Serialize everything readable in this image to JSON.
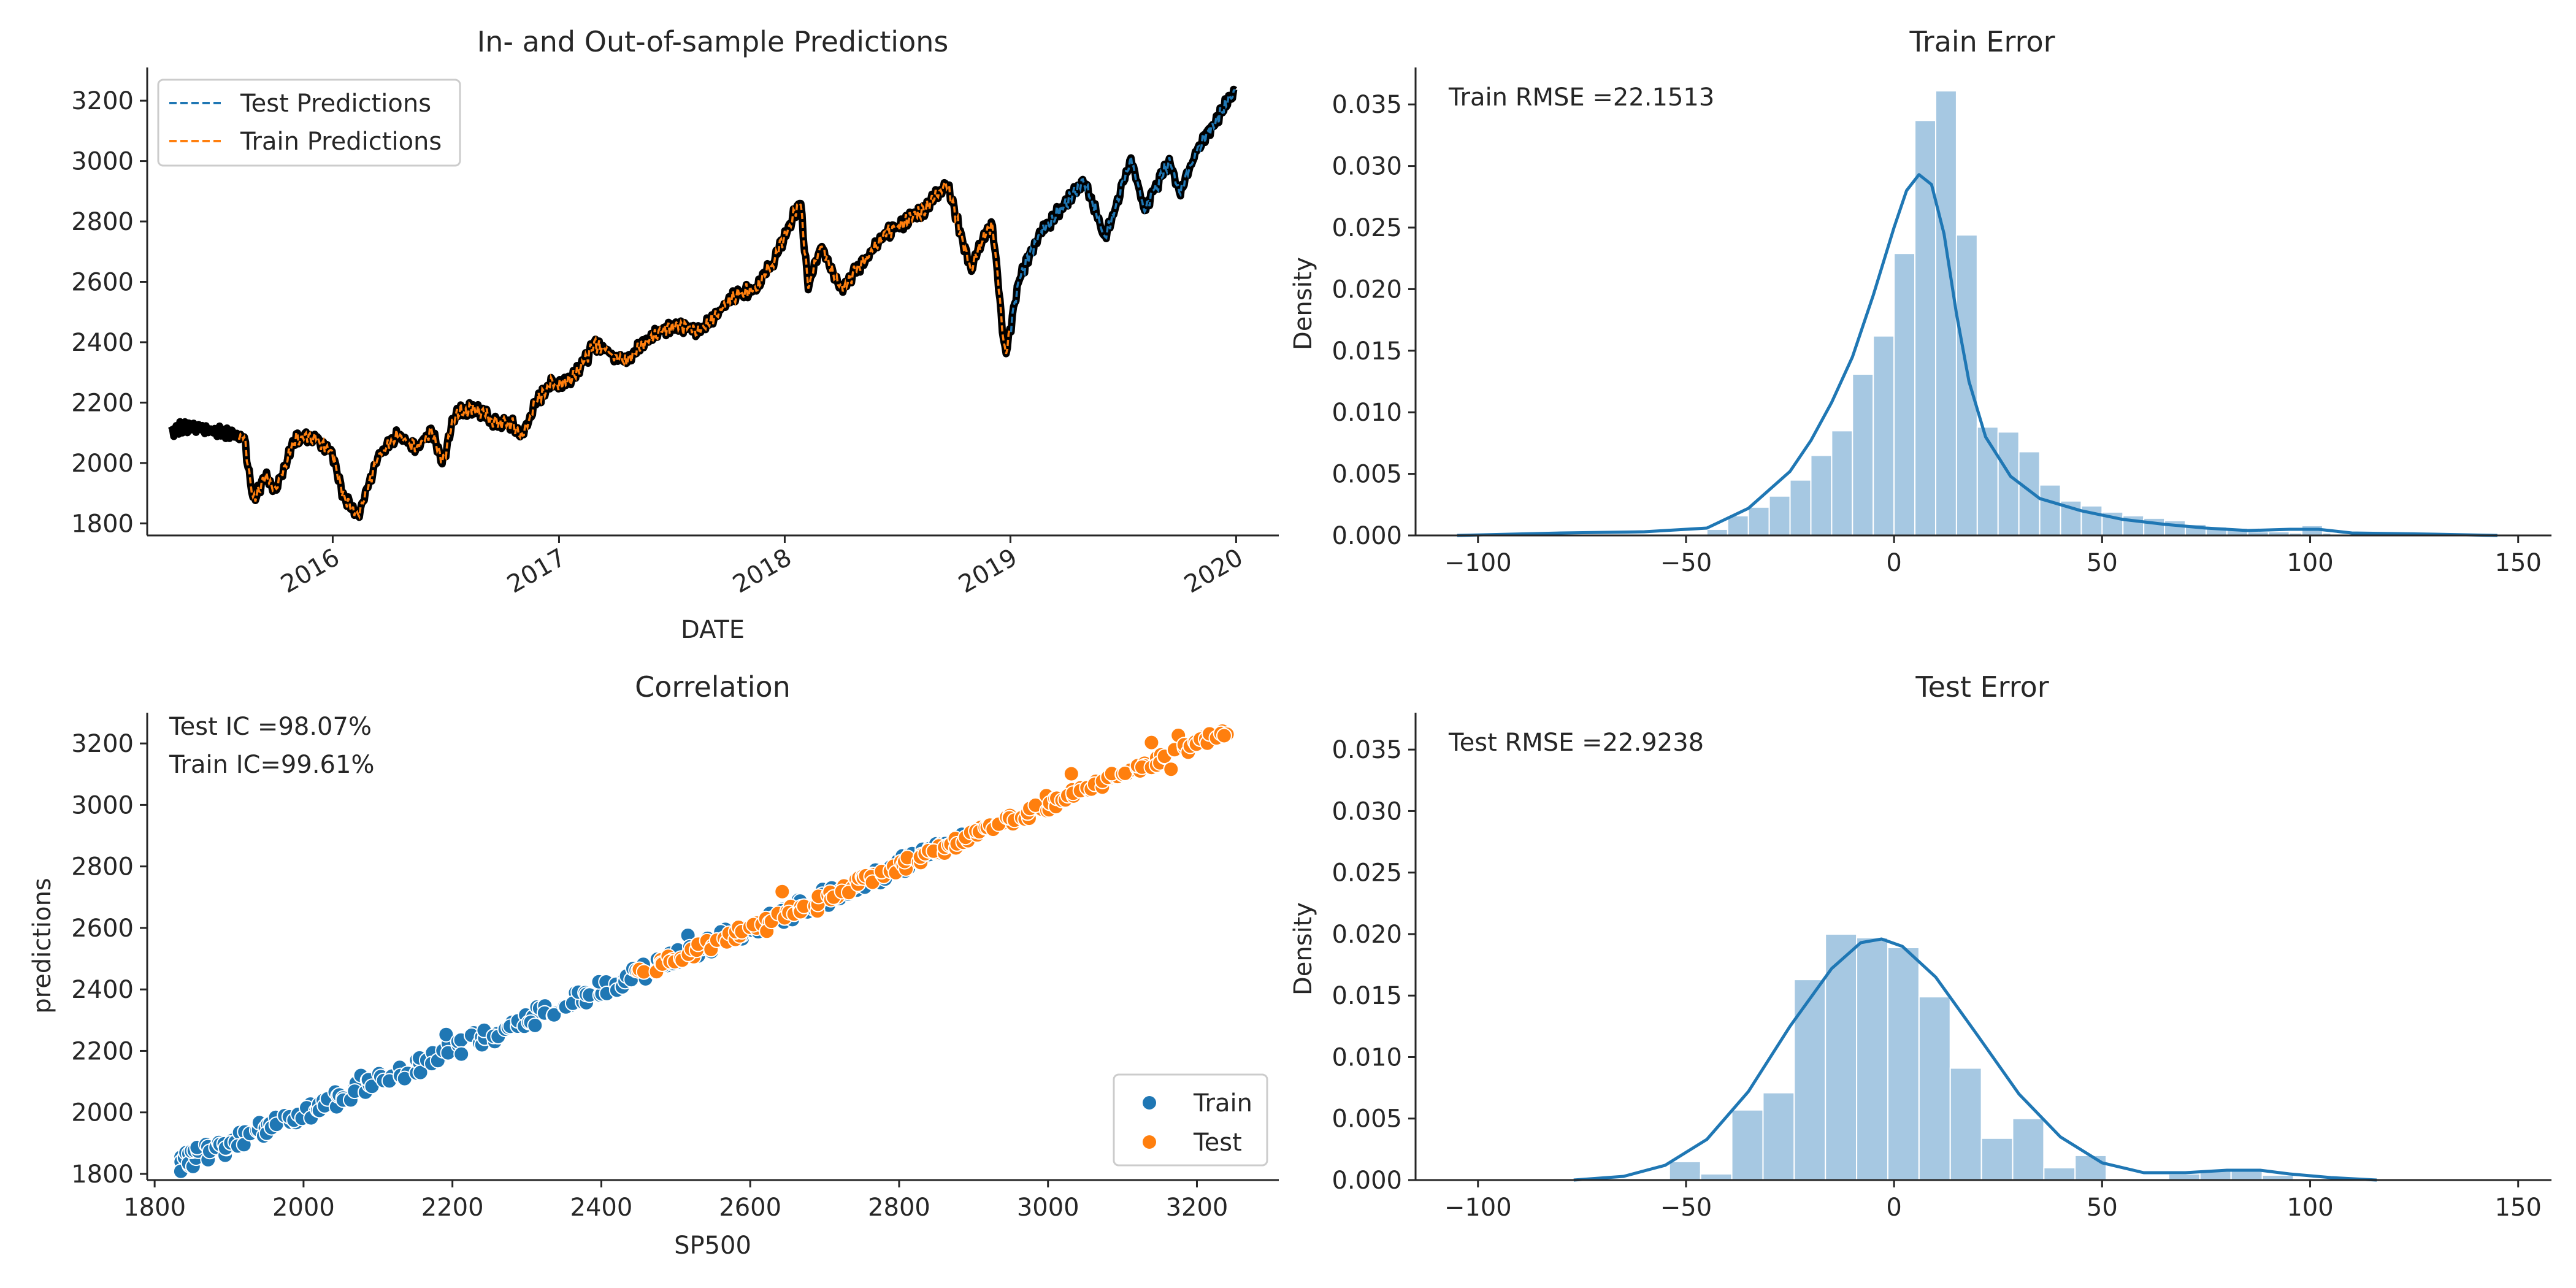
{
  "colors": {
    "blue": "#1f77b4",
    "orange": "#ff7f0e",
    "hist": "#a6c8e2",
    "actual": "#000000",
    "axis": "#262626"
  },
  "chart_data": [
    {
      "id": "predictions",
      "type": "line",
      "title": "In- and Out-of-sample Predictions",
      "xlabel": "DATE",
      "ylabel": "",
      "xlim": [
        "2015-03-07",
        "2020-03-10"
      ],
      "ylim": [
        1760,
        3310
      ],
      "xticks": [
        {
          "date": "2016-01-01",
          "label": "2016"
        },
        {
          "date": "2017-01-01",
          "label": "2017"
        },
        {
          "date": "2018-01-01",
          "label": "2018"
        },
        {
          "date": "2019-01-01",
          "label": "2019"
        },
        {
          "date": "2020-01-01",
          "label": "2020"
        }
      ],
      "yticks": [
        1800,
        2000,
        2200,
        2400,
        2600,
        2800,
        3000,
        3200
      ],
      "legend": {
        "position": "top-left",
        "entries": [
          "Test Predictions",
          "Train Predictions"
        ]
      },
      "actual_points": [
        [
          "2015-04-15",
          2110
        ],
        [
          "2015-05-15",
          2120
        ],
        [
          "2015-06-15",
          2110
        ],
        [
          "2015-07-15",
          2100
        ],
        [
          "2015-08-10",
          2090
        ],
        [
          "2015-08-25",
          1880
        ],
        [
          "2015-09-15",
          1950
        ],
        [
          "2015-10-01",
          1910
        ],
        [
          "2015-11-01",
          2080
        ],
        [
          "2015-12-01",
          2090
        ],
        [
          "2015-12-31",
          2040
        ],
        [
          "2016-01-20",
          1880
        ],
        [
          "2016-02-11",
          1830
        ],
        [
          "2016-03-15",
          2020
        ],
        [
          "2016-04-15",
          2090
        ],
        [
          "2016-05-15",
          2050
        ],
        [
          "2016-06-08",
          2110
        ],
        [
          "2016-06-27",
          2000
        ],
        [
          "2016-07-15",
          2160
        ],
        [
          "2016-08-15",
          2185
        ],
        [
          "2016-09-15",
          2140
        ],
        [
          "2016-10-15",
          2130
        ],
        [
          "2016-11-03",
          2090
        ],
        [
          "2016-11-20",
          2180
        ],
        [
          "2016-12-15",
          2260
        ],
        [
          "2017-01-15",
          2270
        ],
        [
          "2017-02-15",
          2350
        ],
        [
          "2017-03-01",
          2395
        ],
        [
          "2017-04-15",
          2340
        ],
        [
          "2017-05-15",
          2390
        ],
        [
          "2017-06-15",
          2440
        ],
        [
          "2017-07-15",
          2460
        ],
        [
          "2017-08-15",
          2430
        ],
        [
          "2017-09-15",
          2500
        ],
        [
          "2017-10-15",
          2560
        ],
        [
          "2017-11-15",
          2580
        ],
        [
          "2017-12-15",
          2670
        ],
        [
          "2018-01-26",
          2870
        ],
        [
          "2018-02-08",
          2580
        ],
        [
          "2018-03-01",
          2720
        ],
        [
          "2018-04-02",
          2580
        ],
        [
          "2018-05-01",
          2650
        ],
        [
          "2018-06-15",
          2760
        ],
        [
          "2018-07-15",
          2800
        ],
        [
          "2018-08-15",
          2840
        ],
        [
          "2018-09-20",
          2930
        ],
        [
          "2018-10-29",
          2640
        ],
        [
          "2018-11-15",
          2730
        ],
        [
          "2018-12-03",
          2790
        ],
        [
          "2018-12-24",
          2350
        ],
        [
          "2019-01-15",
          2610
        ],
        [
          "2019-02-15",
          2750
        ],
        [
          "2019-03-15",
          2820
        ],
        [
          "2019-04-30",
          2940
        ],
        [
          "2019-06-03",
          2740
        ],
        [
          "2019-07-15",
          3010
        ],
        [
          "2019-08-05",
          2840
        ],
        [
          "2019-09-15",
          3000
        ],
        [
          "2019-10-03",
          2890
        ],
        [
          "2019-10-30",
          3040
        ],
        [
          "2019-11-30",
          3140
        ],
        [
          "2019-12-31",
          3230
        ]
      ],
      "series": [
        {
          "name": "Test Predictions",
          "color": "#1f77b4",
          "from": "2019-01-02",
          "to": "2019-12-31"
        },
        {
          "name": "Train Predictions",
          "color": "#ff7f0e",
          "from": "2015-08-01",
          "to": "2018-12-31"
        }
      ]
    },
    {
      "id": "train_error",
      "type": "bar",
      "title": "Train Error",
      "xlabel": "",
      "ylabel": "Density",
      "annotation": "Train RMSE =22.1513",
      "xlim": [
        -115,
        158
      ],
      "ylim": [
        0,
        0.038
      ],
      "xticks": [
        -100,
        -50,
        0,
        50,
        100,
        150
      ],
      "yticks": [
        "0.000",
        "0.005",
        "0.010",
        "0.015",
        "0.020",
        "0.025",
        "0.030",
        "0.035"
      ],
      "bins_start": -45,
      "bin_width": 5,
      "densities": [
        0.0005,
        0.0016,
        0.0023,
        0.0032,
        0.0045,
        0.0065,
        0.0085,
        0.0131,
        0.0162,
        0.0229,
        0.0337,
        0.0361,
        0.0244,
        0.0088,
        0.0084,
        0.0068,
        0.0041,
        0.0028,
        0.0024,
        0.0019,
        0.0016,
        0.0014,
        0.0012,
        0.0009,
        0.0007,
        0.0006,
        0.0003,
        0.0003,
        0.0002,
        0.0002
      ],
      "extra_bins": [
        {
          "x": 98,
          "density": 0.0008
        }
      ],
      "kde": [
        [
          -105,
          0.0
        ],
        [
          -80,
          0.0002
        ],
        [
          -60,
          0.0003
        ],
        [
          -45,
          0.0006
        ],
        [
          -35,
          0.0022
        ],
        [
          -25,
          0.0052
        ],
        [
          -20,
          0.0077
        ],
        [
          -15,
          0.0108
        ],
        [
          -10,
          0.0145
        ],
        [
          -5,
          0.0195
        ],
        [
          0,
          0.025
        ],
        [
          3,
          0.028
        ],
        [
          6,
          0.0293
        ],
        [
          9,
          0.0285
        ],
        [
          12,
          0.0245
        ],
        [
          15,
          0.018
        ],
        [
          18,
          0.0125
        ],
        [
          22,
          0.008
        ],
        [
          28,
          0.0048
        ],
        [
          35,
          0.003
        ],
        [
          45,
          0.002
        ],
        [
          55,
          0.0013
        ],
        [
          65,
          0.0009
        ],
        [
          75,
          0.0006
        ],
        [
          85,
          0.0004
        ],
        [
          95,
          0.0005
        ],
        [
          102,
          0.0005
        ],
        [
          110,
          0.0002
        ],
        [
          130,
          0.0001
        ],
        [
          145,
          0.0
        ]
      ]
    },
    {
      "id": "correlation",
      "type": "scatter",
      "title": "Correlation",
      "xlabel": "SP500",
      "ylabel": "predictions",
      "annotations": [
        "Test IC =98.07%",
        "Train IC=99.61%"
      ],
      "xlim": [
        1790,
        3310
      ],
      "ylim": [
        1780,
        3300
      ],
      "xticks": [
        1800,
        2000,
        2200,
        2400,
        2600,
        2800,
        3000,
        3200
      ],
      "yticks": [
        1800,
        2000,
        2200,
        2400,
        2600,
        2800,
        3000,
        3200
      ],
      "legend": {
        "position": "bottom-right",
        "entries": [
          "Train",
          "Test"
        ]
      },
      "series": [
        {
          "name": "Train",
          "color": "#1f77b4",
          "x_range": [
            1830,
            2880
          ],
          "count": 260,
          "spread": 30
        },
        {
          "name": "Test",
          "color": "#ff7f0e",
          "x_range": [
            2450,
            3240
          ],
          "count": 200,
          "spread": 18
        }
      ]
    },
    {
      "id": "test_error",
      "type": "bar",
      "title": "Test Error",
      "xlabel": "",
      "ylabel": "Density",
      "annotation": "Test RMSE =22.9238",
      "xlim": [
        -115,
        158
      ],
      "ylim": [
        0,
        0.038
      ],
      "xticks": [
        -100,
        -50,
        0,
        50,
        100,
        150
      ],
      "yticks": [
        "0.000",
        "0.005",
        "0.010",
        "0.015",
        "0.020",
        "0.025",
        "0.030",
        "0.035"
      ],
      "bins_start": -54,
      "bin_width": 7.5,
      "densities": [
        0.0015,
        0.0005,
        0.0057,
        0.0071,
        0.0163,
        0.02,
        0.0197,
        0.0189,
        0.0149,
        0.0091,
        0.0034,
        0.005,
        0.001,
        0.002,
        0.0,
        0.0,
        0.0005,
        0.0008,
        0.0008,
        0.0004
      ],
      "kde": [
        [
          -77,
          0.0
        ],
        [
          -65,
          0.0003
        ],
        [
          -55,
          0.0012
        ],
        [
          -45,
          0.0033
        ],
        [
          -35,
          0.0072
        ],
        [
          -25,
          0.0125
        ],
        [
          -15,
          0.0172
        ],
        [
          -8,
          0.0193
        ],
        [
          -3,
          0.0196
        ],
        [
          2,
          0.019
        ],
        [
          10,
          0.0165
        ],
        [
          20,
          0.0118
        ],
        [
          30,
          0.007
        ],
        [
          40,
          0.0035
        ],
        [
          50,
          0.0014
        ],
        [
          60,
          0.0006
        ],
        [
          70,
          0.0006
        ],
        [
          80,
          0.0008
        ],
        [
          88,
          0.0008
        ],
        [
          95,
          0.0005
        ],
        [
          105,
          0.0002
        ],
        [
          116,
          0.0
        ]
      ]
    }
  ]
}
